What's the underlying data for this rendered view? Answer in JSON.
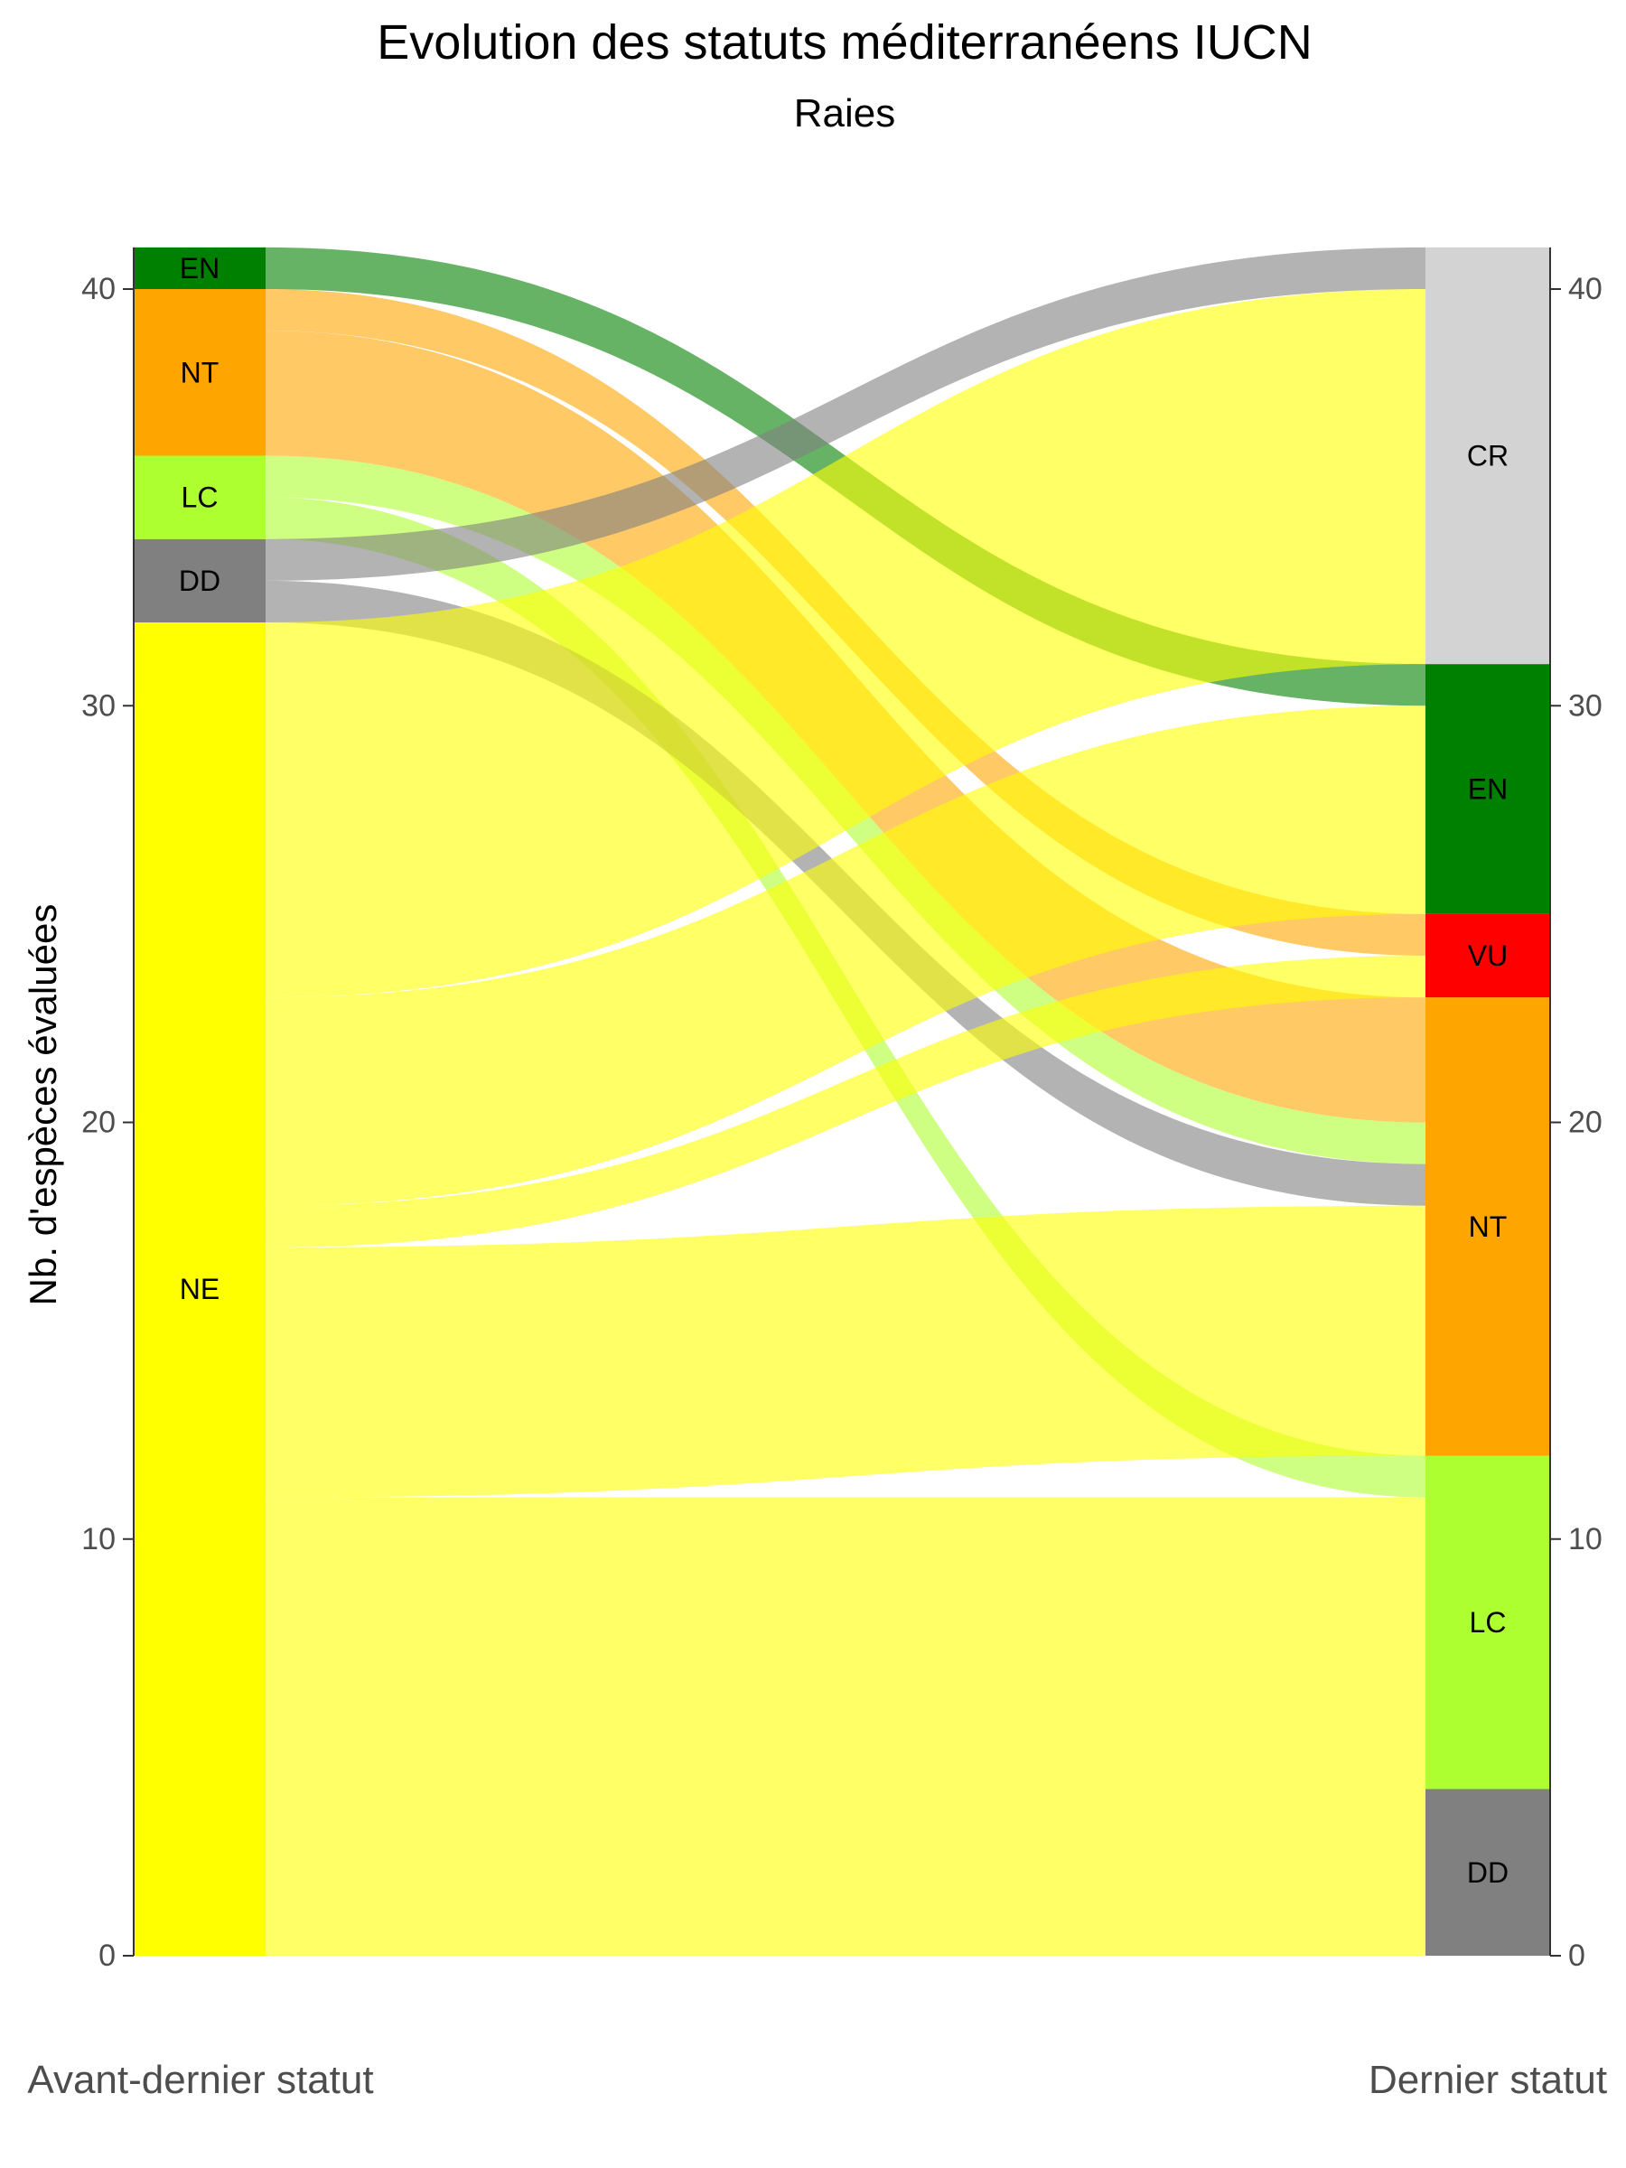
{
  "chart_data": {
    "type": "alluvial",
    "title": "Evolution des statuts méditerranéens IUCN",
    "subtitle": "Raies",
    "ylabel": "Nb. d'espèces évaluées",
    "axis_labels": {
      "left": "Avant-dernier statut",
      "right": "Dernier statut"
    },
    "ylim": [
      0,
      41
    ],
    "y_ticks": [
      0,
      10,
      20,
      30,
      40
    ],
    "left_strata": [
      {
        "label": "NE",
        "count": 32,
        "color": "#ffff00"
      },
      {
        "label": "DD",
        "count": 2,
        "color": "#808080"
      },
      {
        "label": "LC",
        "count": 2,
        "color": "#adff2f"
      },
      {
        "label": "NT",
        "count": 4,
        "color": "#ffa500"
      },
      {
        "label": "EN",
        "count": 1,
        "color": "#008000"
      }
    ],
    "right_strata": [
      {
        "label": "DD",
        "count": 4,
        "color": "#808080"
      },
      {
        "label": "LC",
        "count": 8,
        "color": "#adff2f"
      },
      {
        "label": "NT",
        "count": 11,
        "color": "#ffa500"
      },
      {
        "label": "VU",
        "count": 2,
        "color": "#ff0000"
      },
      {
        "label": "EN",
        "count": 6,
        "color": "#008000"
      },
      {
        "label": "CR",
        "count": 10,
        "color": "#d3d3d3"
      }
    ],
    "flows": [
      {
        "from": "NE",
        "to": "DD",
        "value": 4
      },
      {
        "from": "NE",
        "to": "LC",
        "value": 7
      },
      {
        "from": "LC",
        "to": "LC",
        "value": 1
      },
      {
        "from": "NE",
        "to": "NT",
        "value": 6
      },
      {
        "from": "DD",
        "to": "NT",
        "value": 1
      },
      {
        "from": "LC",
        "to": "NT",
        "value": 1
      },
      {
        "from": "NT",
        "to": "NT",
        "value": 3
      },
      {
        "from": "NE",
        "to": "VU",
        "value": 1
      },
      {
        "from": "NT",
        "to": "VU",
        "value": 1
      },
      {
        "from": "NE",
        "to": "EN",
        "value": 5
      },
      {
        "from": "EN",
        "to": "EN",
        "value": 1
      },
      {
        "from": "NE",
        "to": "CR",
        "value": 9
      },
      {
        "from": "DD",
        "to": "CR",
        "value": 1
      }
    ]
  }
}
